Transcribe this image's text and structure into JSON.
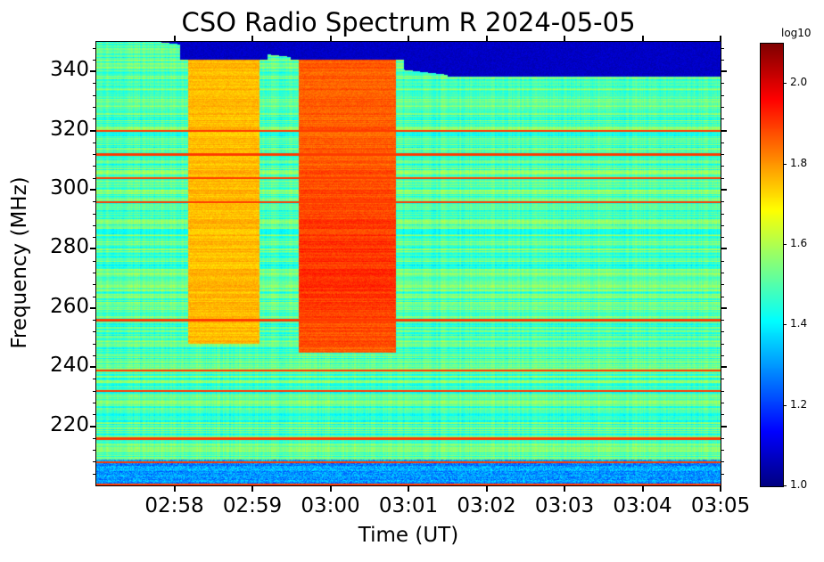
{
  "chart_data": {
    "type": "heatmap",
    "title": "CSO Radio Spectrum R 2024-05-05",
    "xlabel": "Time (UT)",
    "ylabel": "Frequency (MHz)",
    "xlim": [
      "02:57",
      "03:05"
    ],
    "ylim": [
      200,
      350
    ],
    "x_ticks": [
      "02:58",
      "02:59",
      "03:00",
      "03:01",
      "03:02",
      "03:03",
      "03:04",
      "03:05"
    ],
    "y_ticks": [
      "220",
      "240",
      "260",
      "280",
      "300",
      "320",
      "340"
    ],
    "colorbar": {
      "label": "log10",
      "range": [
        1.0,
        2.1
      ],
      "ticks": [
        "1.0",
        "1.2",
        "1.4",
        "1.6",
        "1.8",
        "2.0"
      ],
      "colormap": "jet"
    },
    "background_level": 1.5,
    "features": [
      {
        "name": "upper band cutoff",
        "freq_range": [
          338,
          350
        ],
        "time_range": [
          "02:57",
          "03:05"
        ],
        "value": 1.05
      },
      {
        "name": "burst 1",
        "freq_range": [
          248,
          344
        ],
        "time_range": [
          "02:58:10",
          "02:59:05"
        ],
        "value": 1.76
      },
      {
        "name": "burst 2",
        "freq_range": [
          245,
          344
        ],
        "time_range": [
          "02:59:35",
          "03:00:50"
        ],
        "value": 1.86
      },
      {
        "name": "low band",
        "freq_range": [
          200,
          209
        ],
        "time_range": [
          "02:57",
          "03:05"
        ],
        "value": 1.3
      }
    ],
    "interference_lines_mhz": [
      320,
      312,
      304,
      296,
      256,
      239,
      232,
      216,
      208,
      200.5
    ]
  }
}
